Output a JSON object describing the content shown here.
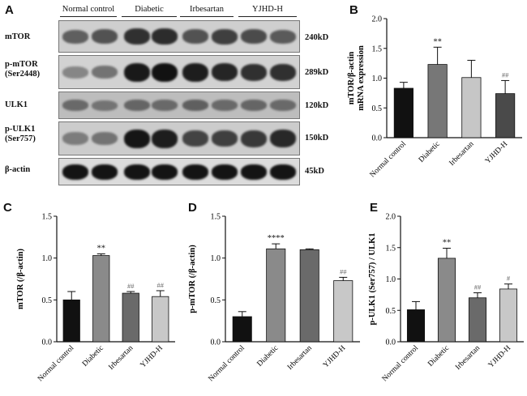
{
  "panels": {
    "A": "A",
    "B": "B",
    "C": "C",
    "D": "D",
    "E": "E"
  },
  "western_blot": {
    "groups": [
      "Normal control",
      "Diabetic",
      "Irbesartan",
      "YJHD-H"
    ],
    "rows": [
      {
        "label": "mTOR",
        "size": "240kD",
        "bg": "#cfcfcf",
        "bands": [
          0.55,
          0.62,
          0.8,
          0.82,
          0.62,
          0.72,
          0.66,
          0.58
        ]
      },
      {
        "label": "p-mTOR\n(Ser2448)",
        "size": "289kD",
        "bg": "#d2d2d2",
        "bands": [
          0.35,
          0.45,
          0.92,
          0.96,
          0.9,
          0.86,
          0.8,
          0.8
        ]
      },
      {
        "label": "ULK1",
        "size": "120kD",
        "bg": "#bdbdbd",
        "bands": [
          0.5,
          0.45,
          0.52,
          0.5,
          0.55,
          0.5,
          0.52,
          0.5
        ]
      },
      {
        "label": "p-ULK1\n(Ser757)",
        "size": "150kD",
        "bg": "#cccccc",
        "bands": [
          0.4,
          0.45,
          0.94,
          0.9,
          0.7,
          0.72,
          0.76,
          0.84
        ]
      },
      {
        "label": "β-actin",
        "size": "45kD",
        "bg": "#dcdcdc",
        "bands": [
          0.95,
          0.95,
          0.95,
          0.95,
          0.95,
          0.95,
          0.95,
          0.95
        ]
      }
    ]
  },
  "chart_data": [
    {
      "panel": "B",
      "type": "bar",
      "categories": [
        "Normal control",
        "Diabetic",
        "Irbesartan",
        "YJHD-H"
      ],
      "values": [
        0.83,
        1.23,
        1.01,
        0.74
      ],
      "errors": [
        0.1,
        0.29,
        0.29,
        0.22
      ],
      "annotations": [
        "",
        "**",
        "",
        "##"
      ],
      "colors": [
        "#111111",
        "#777777",
        "#c6c6c6",
        "#4a4a4a"
      ],
      "ylabel": "mTOR/β-actin\nmRNA expression",
      "ylim": [
        0,
        2.0
      ],
      "yticks": [
        "0.0",
        "0.5",
        "1.0",
        "1.5",
        "2.0"
      ]
    },
    {
      "panel": "C",
      "type": "bar",
      "categories": [
        "Normal control",
        "Diabetic",
        "Irbesartan",
        "YJHD-H"
      ],
      "values": [
        0.5,
        1.03,
        0.58,
        0.54
      ],
      "errors": [
        0.1,
        0.02,
        0.02,
        0.07
      ],
      "annotations": [
        "",
        "**",
        "##",
        "##"
      ],
      "colors": [
        "#111111",
        "#8a8a8a",
        "#6a6a6a",
        "#c8c8c8"
      ],
      "ylabel": "mTOR (/β-actin)",
      "ylim": [
        0,
        1.5
      ],
      "yticks": [
        "0.0",
        "0.5",
        "1.0",
        "1.5"
      ]
    },
    {
      "panel": "D",
      "type": "bar",
      "categories": [
        "Normal control",
        "Diabetic",
        "Irbesartan",
        "YJHD-H"
      ],
      "values": [
        0.3,
        1.11,
        1.1,
        0.73
      ],
      "errors": [
        0.06,
        0.06,
        0.01,
        0.04
      ],
      "annotations": [
        "",
        "****",
        "",
        "##"
      ],
      "colors": [
        "#111111",
        "#8a8a8a",
        "#6a6a6a",
        "#c8c8c8"
      ],
      "ylabel": "p-mTOR (/β-actin)",
      "ylim": [
        0,
        1.5
      ],
      "yticks": [
        "0.0",
        "0.5",
        "1.0",
        "1.5"
      ]
    },
    {
      "panel": "E",
      "type": "bar",
      "categories": [
        "Normal control",
        "Diabetic",
        "Irbesartan",
        "YJHD-H"
      ],
      "values": [
        0.51,
        1.33,
        0.7,
        0.84
      ],
      "errors": [
        0.13,
        0.16,
        0.08,
        0.08
      ],
      "annotations": [
        "",
        "**",
        "##",
        "#"
      ],
      "colors": [
        "#111111",
        "#8a8a8a",
        "#6a6a6a",
        "#c8c8c8"
      ],
      "ylabel": "p-ULK1 (Ser757) / ULK1",
      "ylim": [
        0,
        2.0
      ],
      "yticks": [
        "0.0",
        "0.5",
        "1.0",
        "1.5",
        "2.0"
      ]
    }
  ]
}
